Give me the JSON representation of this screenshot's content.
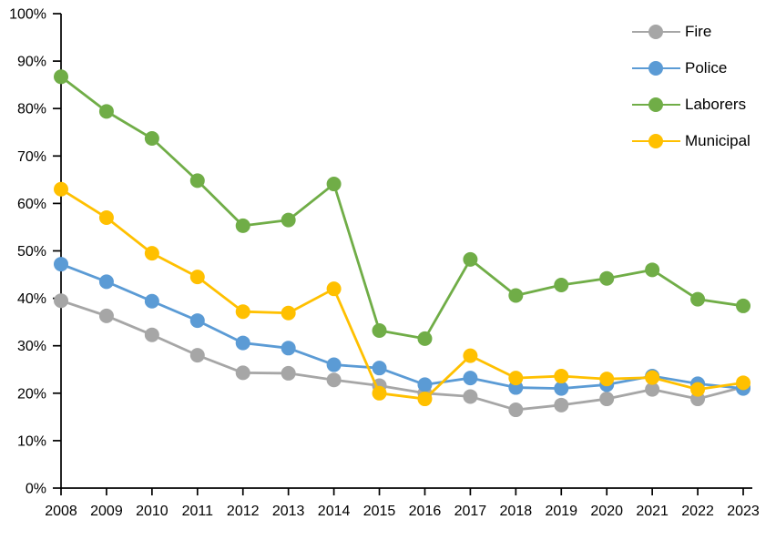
{
  "chart_data": {
    "type": "line",
    "title": "",
    "xlabel": "",
    "ylabel": "",
    "unit": "percent",
    "categories": [
      "2008",
      "2009",
      "2010",
      "2011",
      "2012",
      "2013",
      "2014",
      "2015",
      "2016",
      "2017",
      "2018",
      "2019",
      "2020",
      "2021",
      "2022",
      "2023"
    ],
    "series": [
      {
        "name": "Fire",
        "color": "#A6A6A6",
        "values": [
          39.5,
          36.3,
          32.3,
          28.0,
          24.3,
          24.2,
          22.8,
          21.6,
          20.0,
          19.3,
          16.5,
          17.5,
          18.8,
          20.8,
          18.8,
          21.3
        ]
      },
      {
        "name": "Police",
        "color": "#5B9BD5",
        "values": [
          47.2,
          43.5,
          39.4,
          35.3,
          30.6,
          29.5,
          26.0,
          25.3,
          21.8,
          23.2,
          21.2,
          21.0,
          21.8,
          23.6,
          22.0,
          21.0
        ]
      },
      {
        "name": "Laborers",
        "color": "#70AD47",
        "values": [
          86.7,
          79.4,
          73.7,
          64.8,
          55.3,
          56.5,
          64.1,
          33.2,
          31.5,
          48.2,
          40.6,
          42.8,
          44.2,
          46.0,
          39.8,
          38.4
        ]
      },
      {
        "name": "Municipal",
        "color": "#FFC000",
        "values": [
          63.0,
          57.0,
          49.5,
          44.5,
          37.2,
          36.9,
          42.0,
          20.0,
          18.8,
          27.9,
          23.2,
          23.6,
          23.0,
          23.3,
          20.8,
          22.2
        ]
      }
    ],
    "ylim": [
      0,
      100
    ],
    "y_tick_step": 10,
    "y_tick_labels": [
      "0%",
      "10%",
      "20%",
      "30%",
      "40%",
      "50%",
      "60%",
      "70%",
      "80%",
      "90%",
      "100%"
    ],
    "grid": false,
    "legend_position": "top-right",
    "axis_color": "#000000",
    "text_color": "#000000",
    "background": "#FFFFFF"
  }
}
